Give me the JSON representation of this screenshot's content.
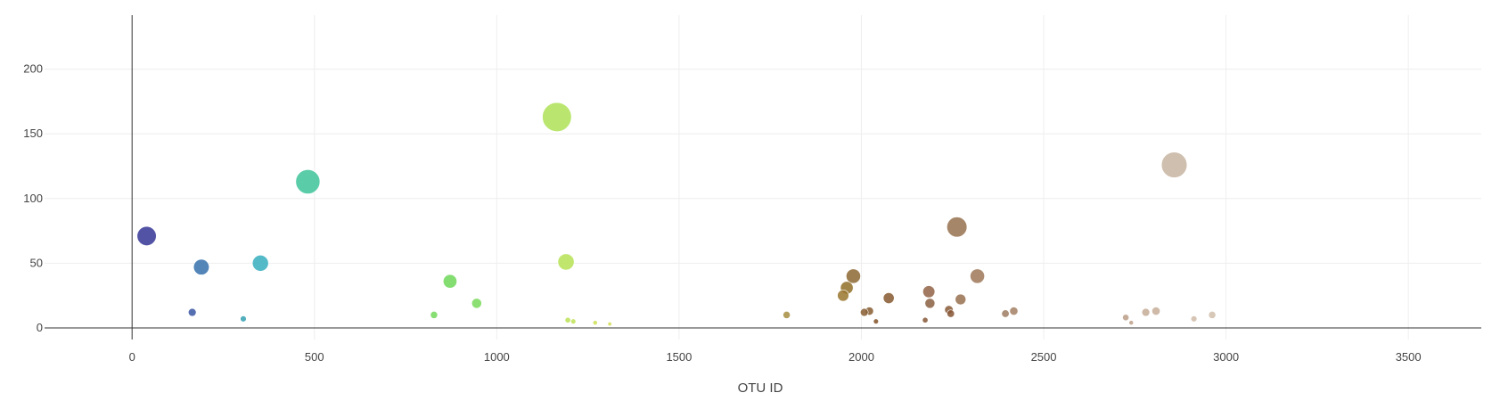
{
  "chart_data": {
    "type": "scatter",
    "title": "",
    "xlabel": "OTU ID",
    "ylabel": "",
    "xlim": [
      -240,
      3700
    ],
    "ylim": [
      -9,
      248
    ],
    "x_ticks": [
      0,
      500,
      1000,
      1500,
      2000,
      2500,
      3000,
      3500
    ],
    "y_ticks": [
      0,
      50,
      100,
      150,
      200
    ],
    "grid": true,
    "legend": "none",
    "size_encoding": "marker size proportional to value",
    "series": [
      {
        "points": [
          {
            "x": 40,
            "y": 71,
            "color": "#3b3b9a"
          },
          {
            "x": 165,
            "y": 12,
            "color": "#3f5ba6"
          },
          {
            "x": 190,
            "y": 47,
            "color": "#3b74ae"
          },
          {
            "x": 305,
            "y": 7,
            "color": "#3aa3b3"
          },
          {
            "x": 352,
            "y": 50,
            "color": "#3eb1c0"
          },
          {
            "x": 482,
            "y": 113,
            "color": "#43c59c"
          },
          {
            "x": 828,
            "y": 10,
            "color": "#76d95e"
          },
          {
            "x": 872,
            "y": 36,
            "color": "#72d85d"
          },
          {
            "x": 945,
            "y": 19,
            "color": "#7cdb5f"
          },
          {
            "x": 1165,
            "y": 163,
            "color": "#b0e25c"
          },
          {
            "x": 1190,
            "y": 51,
            "color": "#b8e35a"
          },
          {
            "x": 1195,
            "y": 6,
            "color": "#bde359"
          },
          {
            "x": 1210,
            "y": 5,
            "color": "#c2e25a"
          },
          {
            "x": 1270,
            "y": 4,
            "color": "#cfe058"
          },
          {
            "x": 1310,
            "y": 3,
            "color": "#d5df58"
          },
          {
            "x": 1795,
            "y": 10,
            "color": "#a89146"
          },
          {
            "x": 1950,
            "y": 25,
            "color": "#9c7a34"
          },
          {
            "x": 1960,
            "y": 31,
            "color": "#94732d"
          },
          {
            "x": 1978,
            "y": 40,
            "color": "#8f6c38"
          },
          {
            "x": 2008,
            "y": 12,
            "color": "#8a6137"
          },
          {
            "x": 2022,
            "y": 13,
            "color": "#8a6137"
          },
          {
            "x": 2040,
            "y": 5,
            "color": "#85582e"
          },
          {
            "x": 2075,
            "y": 23,
            "color": "#8a5f35"
          },
          {
            "x": 2175,
            "y": 6,
            "color": "#8a5c3c"
          },
          {
            "x": 2185,
            "y": 28,
            "color": "#94684b"
          },
          {
            "x": 2188,
            "y": 19,
            "color": "#8d6447"
          },
          {
            "x": 2240,
            "y": 14,
            "color": "#8c5e3e"
          },
          {
            "x": 2245,
            "y": 11,
            "color": "#8a5a3a"
          },
          {
            "x": 2262,
            "y": 78,
            "color": "#9a7554"
          },
          {
            "x": 2272,
            "y": 22,
            "color": "#9a7454"
          },
          {
            "x": 2318,
            "y": 40,
            "color": "#a07b5c"
          },
          {
            "x": 2395,
            "y": 11,
            "color": "#a28166"
          },
          {
            "x": 2418,
            "y": 13,
            "color": "#a68469"
          },
          {
            "x": 2725,
            "y": 8,
            "color": "#bda08a"
          },
          {
            "x": 2740,
            "y": 4,
            "color": "#bfa38d"
          },
          {
            "x": 2780,
            "y": 12,
            "color": "#c6ad98"
          },
          {
            "x": 2808,
            "y": 13,
            "color": "#c8b09b"
          },
          {
            "x": 2858,
            "y": 126,
            "color": "#c8b6a3"
          },
          {
            "x": 2912,
            "y": 7,
            "color": "#d0bdaa"
          },
          {
            "x": 2962,
            "y": 10,
            "color": "#d2c0ad"
          }
        ]
      }
    ]
  }
}
